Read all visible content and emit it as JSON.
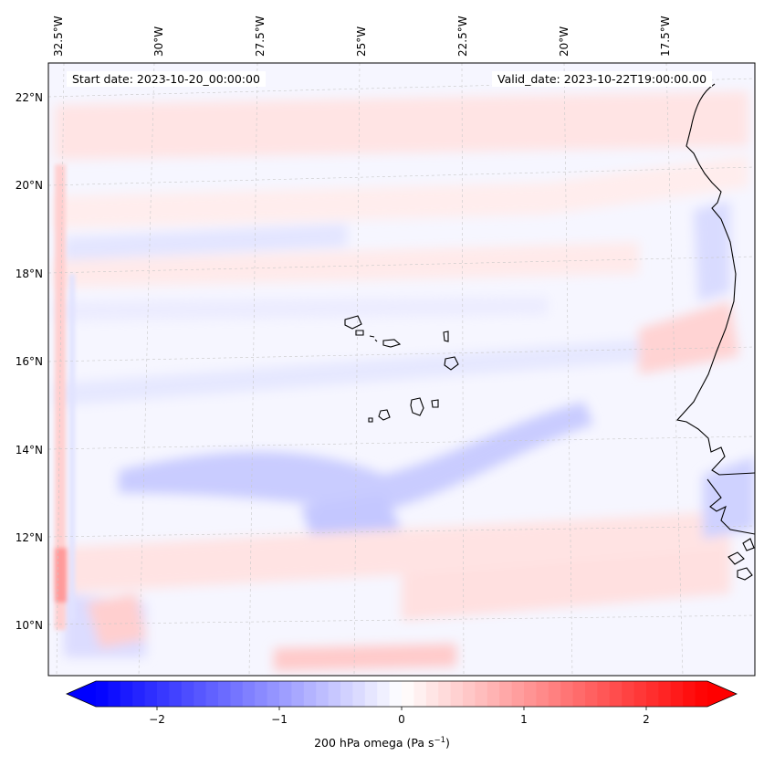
{
  "map": {
    "lon_labels": [
      "32.5°W",
      "30°W",
      "27.5°W",
      "25°W",
      "22.5°W",
      "20°W",
      "17.5°W"
    ],
    "lat_labels": [
      "22°N",
      "20°N",
      "18°N",
      "16°N",
      "14°N",
      "12°N",
      "10°N"
    ],
    "start_date": "Start date: 2023-10-20_00:00:00",
    "valid_date": "Valid_date: 2023-10-22T19:00:00.00"
  },
  "colorbar": {
    "ticks": [
      "−2",
      "−1",
      "0",
      "1",
      "2"
    ],
    "tick_values": [
      -2,
      -1,
      0,
      1,
      2
    ],
    "vmin": -2.5,
    "vmax": 2.5,
    "label_main": "200 hPa omega (Pa s",
    "label_exp": "−1",
    "label_close": ")",
    "colormap": "bwr",
    "color_min": "#0000ff",
    "color_mid": "#ffffff",
    "color_max": "#ff0000"
  }
}
